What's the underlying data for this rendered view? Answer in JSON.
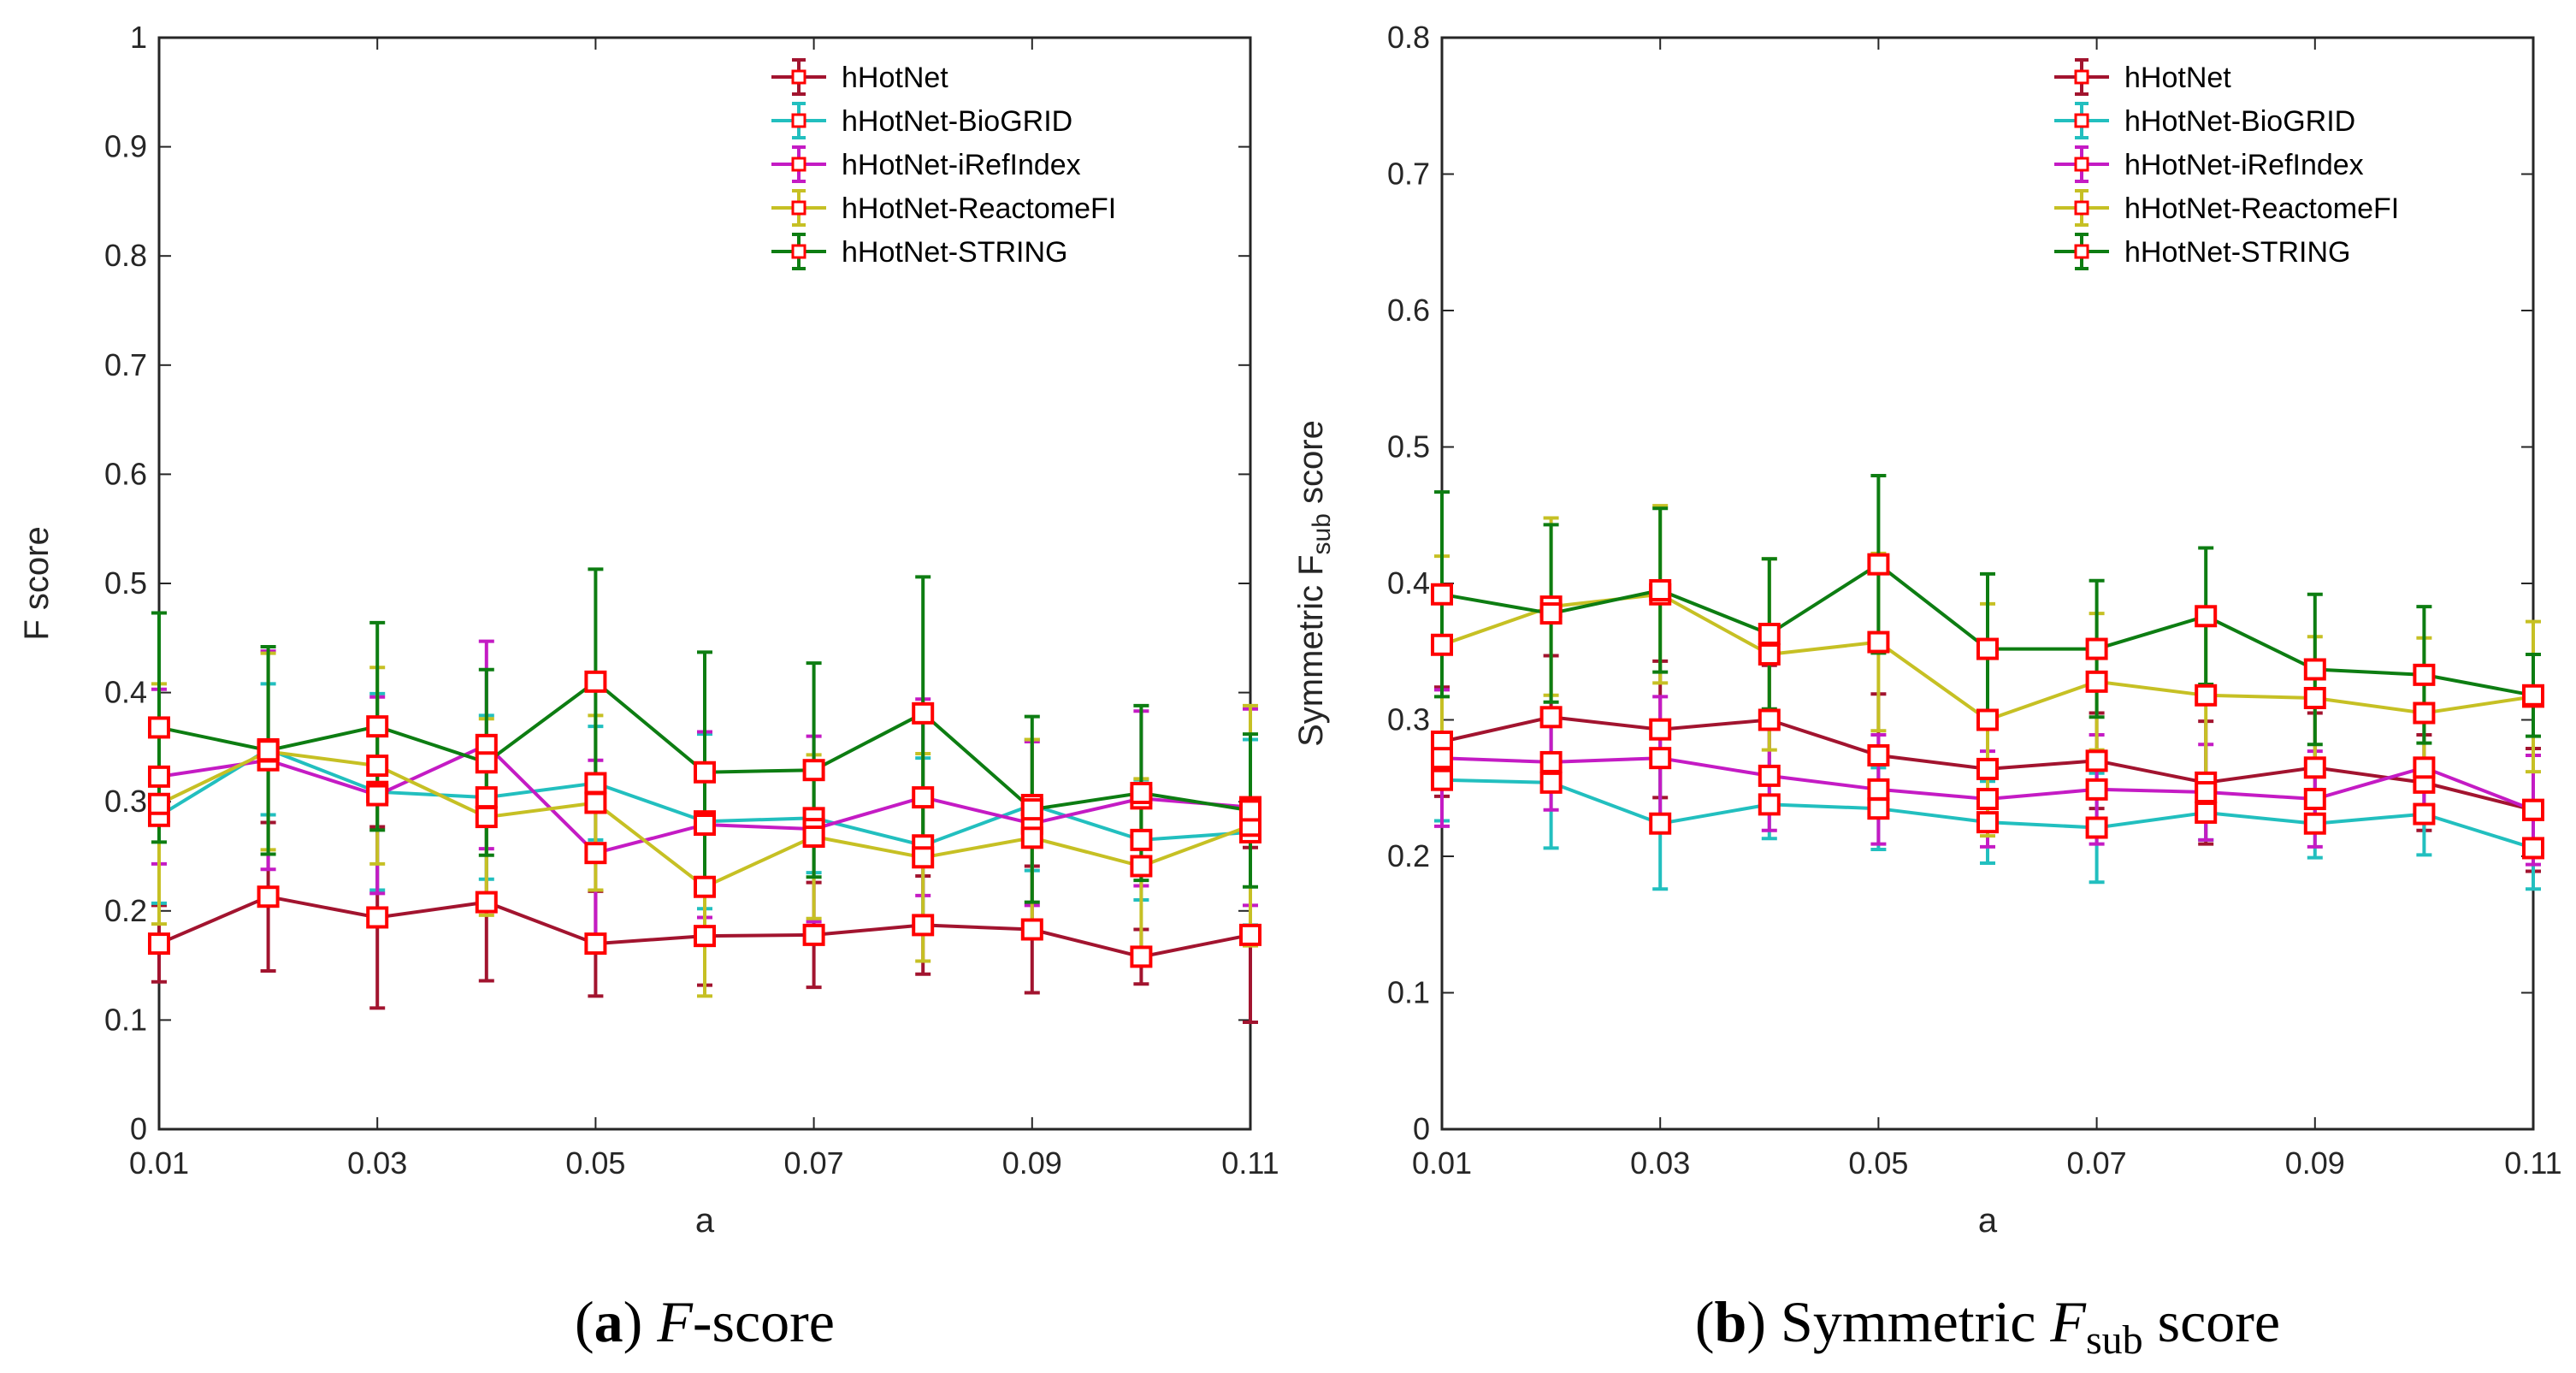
{
  "chart_data": [
    {
      "type": "line",
      "panel": "a",
      "xlabel": "a",
      "ylabel": "F score",
      "xlim": [
        0.01,
        0.11
      ],
      "ylim": [
        0,
        1
      ],
      "xticks": [
        "0.01",
        "0.03",
        "0.05",
        "0.07",
        "0.09",
        "0.11"
      ],
      "yticks": [
        "0",
        "0.1",
        "0.2",
        "0.3",
        "0.4",
        "0.5",
        "0.6",
        "0.7",
        "0.8",
        "0.9",
        "1"
      ],
      "grid": false,
      "legend_position": "top-right",
      "caption": {
        "label": "a",
        "title_italic": "F",
        "title_rest": "-score"
      },
      "x": [
        0.01,
        0.02,
        0.03,
        0.04,
        0.05,
        0.06,
        0.07,
        0.08,
        0.09,
        0.1,
        0.11
      ],
      "series": [
        {
          "name": "hHotNet",
          "color": "#a2142f",
          "values": [
            0.17,
            0.213,
            0.194,
            0.208,
            0.17,
            0.177,
            0.178,
            0.187,
            0.183,
            0.158,
            0.178
          ],
          "errors": [
            0.035,
            0.068,
            0.083,
            0.072,
            0.048,
            0.045,
            0.048,
            0.045,
            0.058,
            0.025,
            0.08
          ]
        },
        {
          "name": "hHotNet-BioGRID",
          "color": "#22bfbf",
          "values": [
            0.287,
            0.348,
            0.309,
            0.304,
            0.317,
            0.282,
            0.285,
            0.26,
            0.297,
            0.265,
            0.272
          ],
          "errors": [
            0.08,
            0.06,
            0.09,
            0.075,
            0.052,
            0.08,
            0.05,
            0.08,
            0.06,
            0.055,
            0.085
          ]
        },
        {
          "name": "hHotNet-iRefIndex",
          "color": "#c41bc4",
          "values": [
            0.323,
            0.338,
            0.306,
            0.352,
            0.253,
            0.279,
            0.275,
            0.304,
            0.28,
            0.303,
            0.295
          ],
          "errors": [
            0.08,
            0.1,
            0.09,
            0.095,
            0.085,
            0.085,
            0.085,
            0.09,
            0.075,
            0.08,
            0.09
          ]
        },
        {
          "name": "hHotNet-ReactomeFI",
          "color": "#c6c024",
          "values": [
            0.298,
            0.346,
            0.333,
            0.286,
            0.299,
            0.222,
            0.268,
            0.249,
            0.267,
            0.241,
            0.278
          ],
          "errors": [
            0.11,
            0.09,
            0.09,
            0.09,
            0.08,
            0.1,
            0.075,
            0.095,
            0.09,
            0.08,
            0.11
          ]
        },
        {
          "name": "hHotNet-STRING",
          "color": "#0d7d12",
          "values": [
            0.368,
            0.347,
            0.369,
            0.336,
            0.41,
            0.327,
            0.329,
            0.381,
            0.293,
            0.308,
            0.292
          ],
          "errors": [
            0.105,
            0.095,
            0.095,
            0.085,
            0.103,
            0.11,
            0.098,
            0.125,
            0.085,
            0.08,
            0.07
          ]
        }
      ]
    },
    {
      "type": "line",
      "panel": "b",
      "xlabel": "a",
      "ylabel_main": "Symmetric F",
      "ylabel_sub": "sub",
      "ylabel_end": "score",
      "xlim": [
        0.01,
        0.11
      ],
      "ylim": [
        0,
        0.8
      ],
      "xticks": [
        "0.01",
        "0.03",
        "0.05",
        "0.07",
        "0.09",
        "0.11"
      ],
      "yticks": [
        "0",
        "0.1",
        "0.2",
        "0.3",
        "0.4",
        "0.5",
        "0.6",
        "0.7",
        "0.8"
      ],
      "grid": false,
      "legend_position": "top-right",
      "caption": {
        "label": "b",
        "title_start": "Symmetric",
        "title_italic": "F",
        "title_sub": "sub",
        "title_rest": "score"
      },
      "x": [
        0.01,
        0.02,
        0.03,
        0.04,
        0.05,
        0.06,
        0.07,
        0.08,
        0.09,
        0.1,
        0.11
      ],
      "series": [
        {
          "name": "hHotNet",
          "color": "#a2142f",
          "values": [
            0.284,
            0.302,
            0.293,
            0.3,
            0.274,
            0.264,
            0.27,
            0.254,
            0.265,
            0.254,
            0.234
          ],
          "errors": [
            0.04,
            0.045,
            0.05,
            0.04,
            0.045,
            0.04,
            0.035,
            0.045,
            0.04,
            0.035,
            0.045
          ]
        },
        {
          "name": "hHotNet-BioGRID",
          "color": "#22bfbf",
          "values": [
            0.256,
            0.254,
            0.224,
            0.238,
            0.235,
            0.225,
            0.221,
            0.232,
            0.224,
            0.231,
            0.206
          ],
          "errors": [
            0.03,
            0.048,
            0.048,
            0.025,
            0.03,
            0.03,
            0.04,
            0.02,
            0.025,
            0.03,
            0.03
          ]
        },
        {
          "name": "hHotNet-iRefIndex",
          "color": "#c41bc4",
          "values": [
            0.272,
            0.269,
            0.272,
            0.259,
            0.249,
            0.242,
            0.249,
            0.247,
            0.242,
            0.265,
            0.234
          ],
          "errors": [
            0.05,
            0.035,
            0.045,
            0.04,
            0.04,
            0.035,
            0.04,
            0.035,
            0.035,
            0.04,
            0.04
          ]
        },
        {
          "name": "hHotNet-ReactomeFI",
          "color": "#c6c024",
          "values": [
            0.355,
            0.383,
            0.392,
            0.348,
            0.357,
            0.3,
            0.328,
            0.318,
            0.316,
            0.305,
            0.317
          ],
          "errors": [
            0.065,
            0.065,
            0.065,
            0.07,
            0.065,
            0.085,
            0.05,
            0.06,
            0.045,
            0.055,
            0.055
          ]
        },
        {
          "name": "hHotNet-STRING",
          "color": "#0d7d12",
          "values": [
            0.392,
            0.378,
            0.395,
            0.363,
            0.414,
            0.352,
            0.352,
            0.376,
            0.337,
            0.333,
            0.318
          ],
          "errors": [
            0.075,
            0.065,
            0.06,
            0.055,
            0.065,
            0.055,
            0.05,
            0.05,
            0.055,
            0.05,
            0.03
          ]
        }
      ]
    }
  ]
}
